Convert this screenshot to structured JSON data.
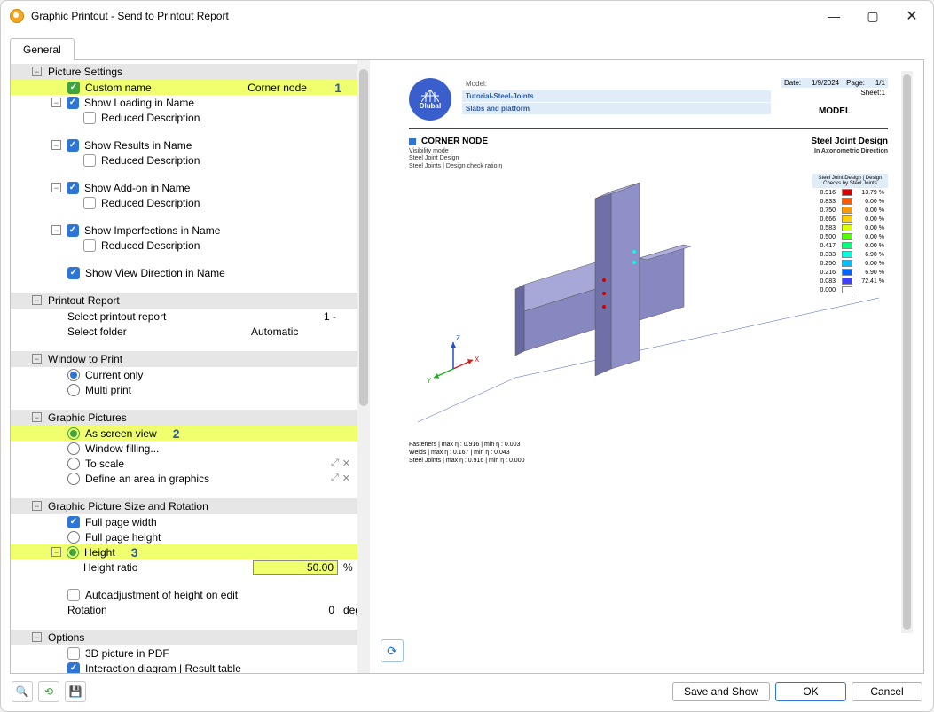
{
  "window": {
    "title": "Graphic Printout - Send to Printout Report"
  },
  "tab": "General",
  "annotations": {
    "a1": "1",
    "a2": "2",
    "a3": "3"
  },
  "highlight_color": "#f0ff6e",
  "sections": {
    "picture_settings": {
      "title": "Picture Settings",
      "custom_name": {
        "label": "Custom name",
        "value": "Corner node"
      },
      "show_loading": {
        "label": "Show Loading in Name",
        "reduced": "Reduced Description"
      },
      "show_results": {
        "label": "Show Results in Name",
        "reduced": "Reduced Description"
      },
      "show_addon": {
        "label": "Show Add-on in Name",
        "reduced": "Reduced Description"
      },
      "show_imperfections": {
        "label": "Show Imperfections in Name",
        "reduced": "Reduced Description"
      },
      "show_view_dir": {
        "label": "Show View Direction in Name"
      }
    },
    "printout_report": {
      "title": "Printout Report",
      "select_report": {
        "label": "Select printout report",
        "value": "1 -"
      },
      "select_folder": {
        "label": "Select folder",
        "value": "Automatic"
      }
    },
    "window_to_print": {
      "title": "Window to Print",
      "current_only": "Current only",
      "multi_print": "Multi print"
    },
    "graphic_pictures": {
      "title": "Graphic Pictures",
      "as_screen": "As screen view",
      "window_filling": "Window filling...",
      "to_scale": "To scale",
      "define_area": "Define an area in graphics"
    },
    "size_rotation": {
      "title": "Graphic Picture Size and Rotation",
      "full_width": "Full page width",
      "full_height": "Full page height",
      "height": "Height",
      "height_ratio": {
        "label": "Height ratio",
        "value": "50.00",
        "unit": "%"
      },
      "autoadjust": "Autoadjustment of height on edit",
      "rotation": {
        "label": "Rotation",
        "value": "0",
        "unit": "deg"
      }
    },
    "options": {
      "title": "Options",
      "pdf3d": "3D picture in PDF",
      "interaction": "Interaction diagram | Result table"
    }
  },
  "footer": {
    "save_show": "Save and Show",
    "ok": "OK",
    "cancel": "Cancel"
  },
  "preview": {
    "logo_text": "Dlubal",
    "meta": {
      "model_label": "Model:",
      "model_val": "Tutorial-Steel-Joints",
      "desc": "Slabs and platform",
      "date_label": "Date:",
      "date_val": "1/9/2024",
      "page_label": "Page:",
      "page_val": "1/1",
      "sheet_label": "Sheet:",
      "sheet_val": "1",
      "model_big": "MODEL"
    },
    "title": "CORNER NODE",
    "right_title": "Steel Joint Design",
    "sub1": "Visibility mode",
    "sub2": "Steel Joint Design",
    "sub3": "Steel Joints | Design check ratio η",
    "direction": "In Axonometric Direction",
    "legend_title": "Steel Joint Design | Design Checks by Steel Joints",
    "legend": [
      {
        "v": "0.916",
        "c": "#d40000",
        "p": "13.79 %"
      },
      {
        "v": "0.833",
        "c": "#ff5a00",
        "p": "0.00 %"
      },
      {
        "v": "0.750",
        "c": "#ff9a00",
        "p": "0.00 %"
      },
      {
        "v": "0.666",
        "c": "#ffd000",
        "p": "0.00 %"
      },
      {
        "v": "0.583",
        "c": "#d9ff00",
        "p": "0.00 %"
      },
      {
        "v": "0.500",
        "c": "#55ff00",
        "p": "0.00 %"
      },
      {
        "v": "0.417",
        "c": "#00ff7b",
        "p": "0.00 %"
      },
      {
        "v": "0.333",
        "c": "#00ffe0",
        "p": "6.90 %"
      },
      {
        "v": "0.250",
        "c": "#00c0ff",
        "p": "0.00 %"
      },
      {
        "v": "0.216",
        "c": "#0066ff",
        "p": "6.90 %"
      },
      {
        "v": "0.083",
        "c": "#4040ff",
        "p": "72.41 %"
      },
      {
        "v": "0.000",
        "c": "#ffffff",
        "p": ""
      }
    ],
    "stats1": "Fasteners | max η : 0.916 | min η : 0.003",
    "stats2": "Welds | max η : 0.167 | min η : 0.043",
    "stats3": "Steel Joints | max η : 0.916 | min η : 0.000",
    "axes": {
      "z": "Z",
      "x": "X",
      "y": "Y"
    }
  }
}
